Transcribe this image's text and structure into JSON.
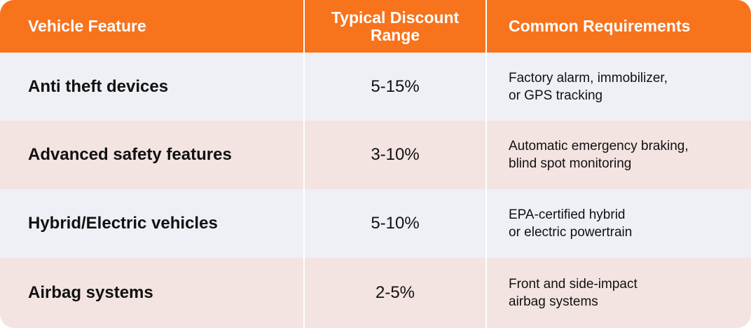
{
  "table": {
    "header": [
      "Vehicle Feature",
      "Typical Discount Range",
      "Common Requirements"
    ],
    "rows": [
      [
        "Anti theft devices",
        "5-15%",
        [
          "Factory alarm, immobilizer,",
          "or GPS tracking"
        ]
      ],
      [
        "Advanced safety features",
        "3-10%",
        [
          "Automatic emergency braking,",
          "blind spot monitoring"
        ]
      ],
      [
        "Hybrid/Electric vehicles",
        "5-10%",
        [
          "EPA-certified hybrid",
          "or electric powertrain"
        ]
      ],
      [
        "Airbag systems",
        "2-5%",
        [
          "Front and side-impact",
          "airbag systems"
        ]
      ]
    ]
  }
}
